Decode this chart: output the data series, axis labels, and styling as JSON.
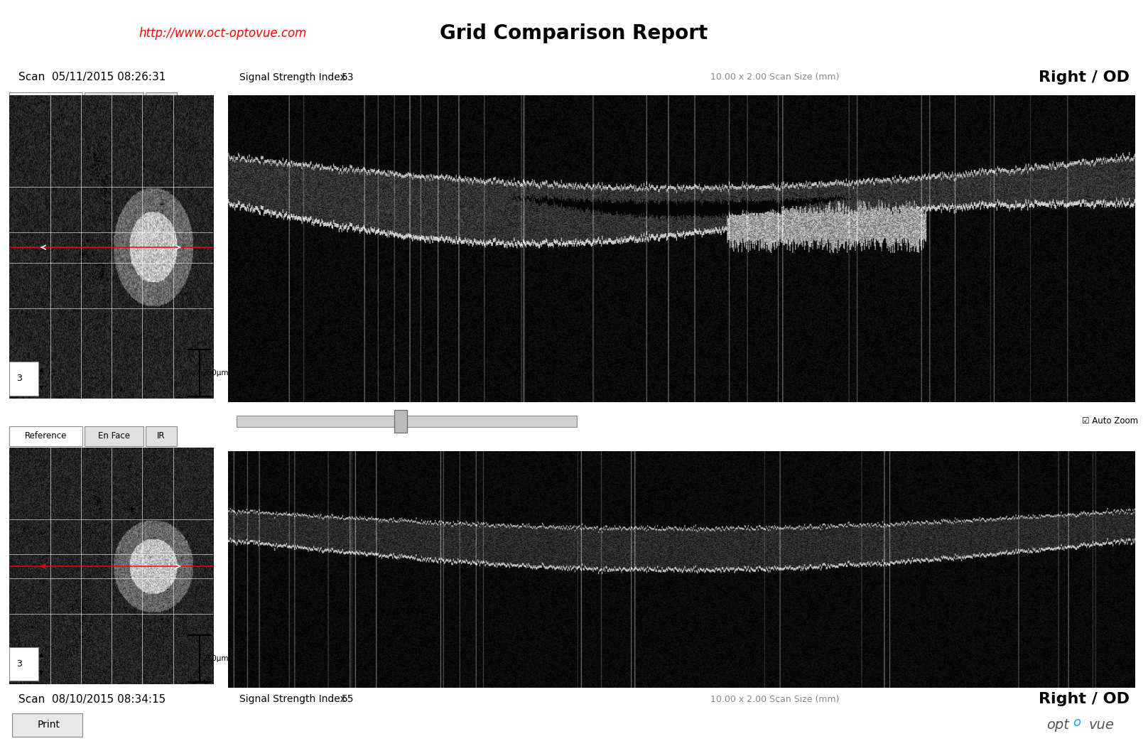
{
  "title": "Grid Comparison Report",
  "url": "http://www.oct-optovue.com",
  "scan1_label": "Scan  05/11/2015 08:26:31",
  "scan2_label": "Scan  08/10/2015 08:34:15",
  "signal1_label": "Signal Strength Index",
  "signal1_value": "53",
  "signal2_label": "Signal Strength Index",
  "signal2_value": "55",
  "scan_size": "10.00 x 2.00 Scan Size (mm)",
  "laterality": "Right / OD",
  "tab_labels": [
    "Reference",
    "En Face",
    "IR"
  ],
  "scale_label": "250μm",
  "print_button": "Print",
  "auto_zoom_label": "Auto Zoom",
  "bg_color": "#ffffff",
  "oct_bg": "#000000",
  "fundus_bg": "#1a1a1a",
  "title_fontsize": 20,
  "url_color": "#ff0000",
  "text_color": "#000000",
  "scan_size_color": "#888888"
}
